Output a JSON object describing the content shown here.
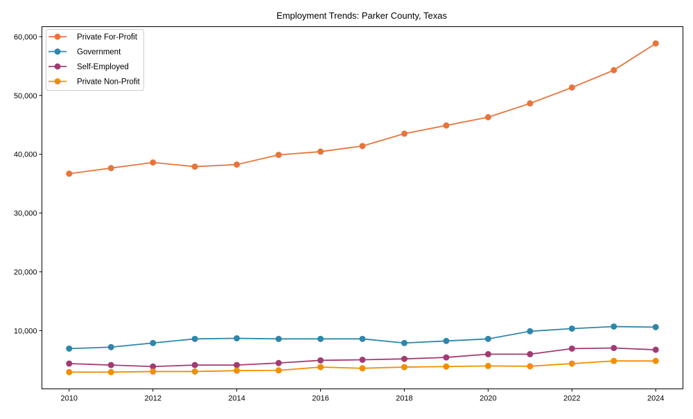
{
  "chart_data": {
    "type": "line",
    "title": "Employment Trends: Parker County, Texas",
    "xlabel": "",
    "ylabel": "",
    "x": [
      2010,
      2011,
      2012,
      2013,
      2014,
      2015,
      2016,
      2017,
      2018,
      2019,
      2020,
      2021,
      2022,
      2023,
      2024
    ],
    "xticks": [
      "2010",
      "2012",
      "2014",
      "2016",
      "2018",
      "2020",
      "2022",
      "2024"
    ],
    "xtick_values": [
      2010,
      2012,
      2014,
      2016,
      2018,
      2020,
      2022,
      2024
    ],
    "yticks": [
      "10,000",
      "20,000",
      "30,000",
      "40,000",
      "50,000",
      "60,000"
    ],
    "ytick_values": [
      10000,
      20000,
      30000,
      40000,
      50000,
      60000
    ],
    "xlim": [
      2009.35,
      2024.65
    ],
    "ylim": [
      100,
      61700
    ],
    "grid": false,
    "legend_placement": "top-left",
    "series": [
      {
        "name": "Private For-Profit",
        "color": "#E8743B",
        "values": [
          36700,
          37650,
          38600,
          37900,
          38250,
          39900,
          40450,
          41400,
          43500,
          44900,
          46300,
          48650,
          51350,
          54300,
          58850
        ]
      },
      {
        "name": "Government",
        "color": "#2E86AB",
        "values": [
          6950,
          7200,
          7900,
          8600,
          8700,
          8600,
          8600,
          8600,
          7900,
          8250,
          8600,
          9900,
          10350,
          10700,
          10600
        ]
      },
      {
        "name": "Self-Employed",
        "color": "#A23B72",
        "values": [
          4400,
          4150,
          3900,
          4150,
          4150,
          4500,
          4950,
          5050,
          5200,
          5450,
          6000,
          6000,
          6950,
          7050,
          6750
        ]
      },
      {
        "name": "Private Non-Profit",
        "color": "#F18F01",
        "values": [
          2950,
          2950,
          3050,
          3050,
          3200,
          3250,
          3800,
          3600,
          3800,
          3900,
          4000,
          3950,
          4400,
          4850,
          4850
        ]
      }
    ]
  }
}
